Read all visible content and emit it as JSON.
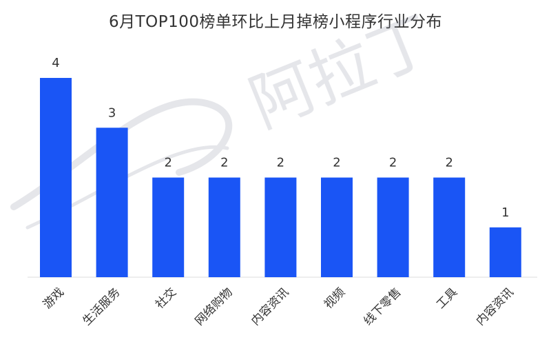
{
  "chart_data": {
    "type": "bar",
    "title": "6月TOP100榜单环比上月掉榜小程序行业分布",
    "categories": [
      "游戏",
      "生活服务",
      "社交",
      "网络购物",
      "内容资讯",
      "视频",
      "线下零售",
      "工具",
      "内容资讯"
    ],
    "values": [
      4,
      3,
      2,
      2,
      2,
      2,
      2,
      2,
      1
    ],
    "ylim": [
      0,
      4
    ],
    "xlabel": "",
    "ylabel": "",
    "grid": false,
    "bar_color": "#1a55f5",
    "watermark": "阿拉丁"
  }
}
